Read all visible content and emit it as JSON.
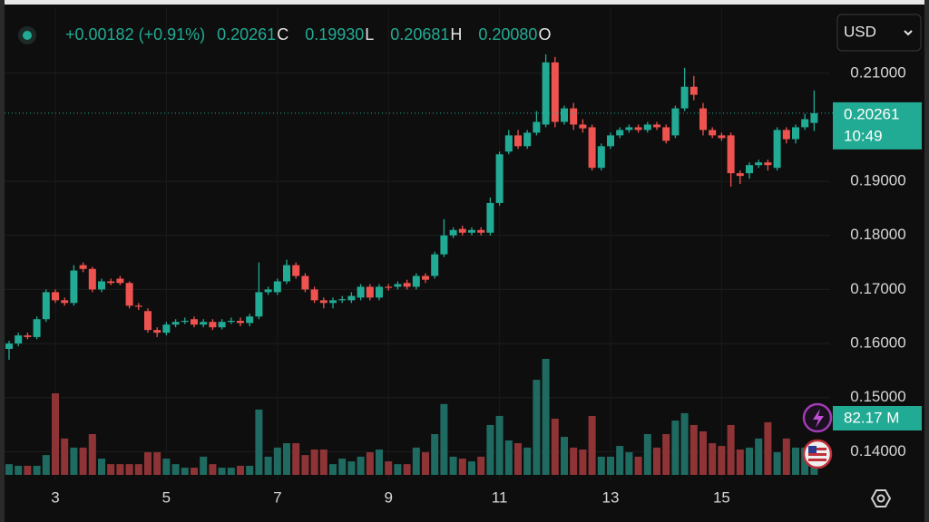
{
  "chart_data": {
    "type": "candlestick",
    "currency": "USD",
    "legend": [
      {
        "text": "+0.00182 (+0.91%)"
      },
      {
        "text": "0.20261",
        "key": "C"
      },
      {
        "text": "0.19930",
        "key": "L"
      },
      {
        "text": "0.20681",
        "key": "H"
      },
      {
        "text": "0.20080",
        "key": "O"
      }
    ],
    "price_tag": {
      "price": "0.20261",
      "countdown": "10:49"
    },
    "volume_label": "82.17 M",
    "up_color": "#22ab94",
    "down_color": "#ef5350",
    "up_volume_color": "#1f6b61",
    "down_volume_color": "#8f3436",
    "grid": true,
    "categories": [
      null,
      null,
      null,
      null,
      null,
      "3",
      null,
      null,
      null,
      null,
      null,
      null,
      null,
      null,
      null,
      null,
      null,
      "5",
      null,
      null,
      null,
      null,
      null,
      null,
      null,
      null,
      null,
      null,
      null,
      "7",
      null,
      null,
      null,
      null,
      null,
      null,
      null,
      null,
      null,
      null,
      null,
      "9",
      null,
      null,
      null,
      null,
      null,
      null,
      null,
      null,
      null,
      null,
      null,
      "11",
      null,
      null,
      null,
      null,
      null,
      null,
      null,
      null,
      null,
      null,
      null,
      "13",
      null,
      null,
      null,
      null,
      null,
      null,
      null,
      null,
      null,
      null,
      null,
      "15",
      null,
      null,
      null,
      null,
      null,
      null,
      null,
      null,
      null,
      null
    ],
    "open": [
      0.159,
      0.16,
      0.1615,
      0.1612,
      0.1645,
      0.1695,
      0.168,
      0.1675,
      0.1745,
      0.1738,
      0.17,
      0.1715,
      0.172,
      0.1712,
      0.167,
      0.166,
      0.1625,
      0.162,
      0.1635,
      0.164,
      0.1645,
      0.1635,
      0.164,
      0.163,
      0.164,
      0.1642,
      0.1638,
      0.165,
      0.1695,
      0.1695,
      0.1715,
      0.1745,
      0.1725,
      0.17,
      0.168,
      0.1675,
      0.168,
      0.168,
      0.1685,
      0.1705,
      0.1685,
      0.1705,
      0.1705,
      0.1712,
      0.1705,
      0.1725,
      0.1725,
      0.1765,
      0.18,
      0.1812,
      0.1805,
      0.181,
      0.1805,
      0.186,
      0.1955,
      0.1985,
      0.1965,
      0.199,
      0.2005,
      0.212,
      0.201,
      0.2035,
      0.2005,
      0.2,
      0.1925,
      0.1965,
      0.1985,
      0.1995,
      0.2,
      0.1995,
      0.2005,
      0.2,
      0.1985,
      0.2035,
      0.2075,
      0.2035,
      0.1995,
      0.1985,
      0.1985,
      0.1915,
      0.1915,
      0.193,
      0.1935,
      0.1925,
      0.1995,
      0.1978,
      0.2,
      0.2008
    ],
    "high": [
      0.1605,
      0.162,
      0.162,
      0.165,
      0.17,
      0.17,
      0.1685,
      0.1745,
      0.175,
      0.1742,
      0.172,
      0.172,
      0.1725,
      0.1715,
      0.1675,
      0.1665,
      0.163,
      0.164,
      0.1645,
      0.1648,
      0.165,
      0.1645,
      0.1645,
      0.1645,
      0.1648,
      0.1648,
      0.1655,
      0.175,
      0.1705,
      0.172,
      0.1755,
      0.175,
      0.173,
      0.1705,
      0.1685,
      0.1685,
      0.1688,
      0.1695,
      0.171,
      0.171,
      0.171,
      0.171,
      0.1715,
      0.1718,
      0.173,
      0.173,
      0.177,
      0.183,
      0.1815,
      0.1818,
      0.1815,
      0.1815,
      0.187,
      0.1955,
      0.1995,
      0.1995,
      0.1995,
      0.203,
      0.2135,
      0.213,
      0.204,
      0.2045,
      0.2015,
      0.2005,
      0.197,
      0.199,
      0.2,
      0.2005,
      0.2005,
      0.201,
      0.201,
      0.2005,
      0.204,
      0.211,
      0.2095,
      0.2045,
      0.2,
      0.199,
      0.199,
      0.192,
      0.1935,
      0.194,
      0.194,
      0.2,
      0.2,
      0.2005,
      0.2025,
      0.20681
    ],
    "low": [
      0.157,
      0.1595,
      0.1608,
      0.1608,
      0.164,
      0.1675,
      0.167,
      0.167,
      0.1732,
      0.1695,
      0.1695,
      0.1708,
      0.1708,
      0.1665,
      0.1662,
      0.162,
      0.1612,
      0.1615,
      0.163,
      0.1636,
      0.163,
      0.163,
      0.1625,
      0.1626,
      0.1636,
      0.1632,
      0.1632,
      0.1645,
      0.169,
      0.169,
      0.171,
      0.172,
      0.1695,
      0.1675,
      0.1665,
      0.1665,
      0.1675,
      0.1675,
      0.168,
      0.168,
      0.168,
      0.1698,
      0.17,
      0.17,
      0.17,
      0.1712,
      0.172,
      0.176,
      0.1795,
      0.18,
      0.18,
      0.18,
      0.18,
      0.1855,
      0.195,
      0.196,
      0.196,
      0.1985,
      0.2,
      0.2,
      0.2005,
      0.1995,
      0.199,
      0.192,
      0.192,
      0.196,
      0.198,
      0.199,
      0.199,
      0.199,
      0.1995,
      0.197,
      0.198,
      0.203,
      0.205,
      0.1985,
      0.198,
      0.1975,
      0.189,
      0.1895,
      0.1905,
      0.1925,
      0.192,
      0.192,
      0.197,
      0.197,
      0.1995,
      0.1993
    ],
    "close": [
      0.16,
      0.1615,
      0.1612,
      0.1645,
      0.1695,
      0.168,
      0.1675,
      0.1735,
      0.1738,
      0.17,
      0.1715,
      0.1712,
      0.1712,
      0.167,
      0.1668,
      0.1625,
      0.162,
      0.1635,
      0.164,
      0.1642,
      0.1635,
      0.164,
      0.163,
      0.164,
      0.1642,
      0.1638,
      0.165,
      0.1695,
      0.17,
      0.1715,
      0.1745,
      0.1725,
      0.17,
      0.168,
      0.1675,
      0.168,
      0.1682,
      0.1688,
      0.1705,
      0.1685,
      0.1705,
      0.1703,
      0.171,
      0.1705,
      0.1725,
      0.1718,
      0.1765,
      0.18,
      0.181,
      0.1805,
      0.181,
      0.1805,
      0.186,
      0.195,
      0.1985,
      0.1965,
      0.199,
      0.201,
      0.212,
      0.201,
      0.2035,
      0.2005,
      0.1998,
      0.1925,
      0.1965,
      0.1985,
      0.1995,
      0.2,
      0.1995,
      0.2005,
      0.2,
      0.1975,
      0.2035,
      0.2075,
      0.206,
      0.1995,
      0.1985,
      0.198,
      0.1915,
      0.191,
      0.193,
      0.1935,
      0.193,
      0.1995,
      0.1978,
      0.2,
      0.2015,
      0.20261
    ],
    "volume": [
      39,
      33,
      33,
      33,
      72,
      296,
      132,
      99,
      99,
      148,
      59,
      39,
      39,
      39,
      39,
      82,
      82,
      59,
      39,
      26,
      26,
      66,
      39,
      26,
      26,
      33,
      33,
      237,
      66,
      99,
      115,
      115,
      72,
      92,
      92,
      39,
      59,
      49,
      66,
      82,
      92,
      49,
      39,
      39,
      99,
      82,
      148,
      257,
      66,
      59,
      49,
      66,
      181,
      214,
      125,
      115,
      99,
      345,
      421,
      204,
      138,
      99,
      92,
      214,
      66,
      66,
      105,
      82,
      66,
      148,
      99,
      148,
      197,
      224,
      181,
      158,
      115,
      105,
      181,
      92,
      99,
      132,
      191,
      82,
      132,
      99,
      99,
      82.17
    ],
    "ylim": [
      0.1347,
      0.2222
    ],
    "yticks": [
      {
        "value": 0.14,
        "label": "0.14000"
      },
      {
        "value": 0.15,
        "label": "0.15000"
      },
      {
        "value": 0.16,
        "label": "0.16000"
      },
      {
        "value": 0.17,
        "label": "0.17000"
      },
      {
        "value": 0.18,
        "label": "0.18000"
      },
      {
        "value": 0.19,
        "label": "0.19000"
      },
      {
        "value": 0.21,
        "label": "0.21000"
      }
    ]
  }
}
